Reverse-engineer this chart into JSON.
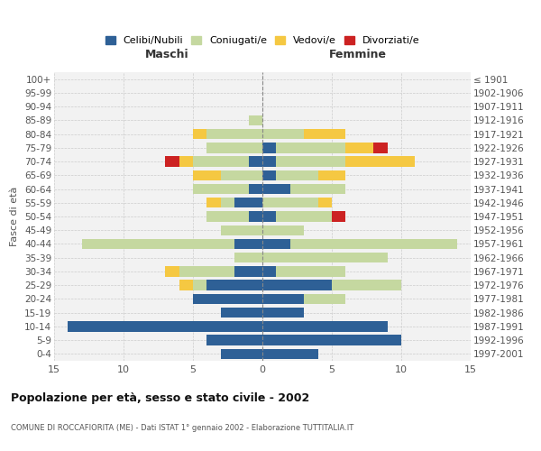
{
  "age_groups_bottom_to_top": [
    "0-4",
    "5-9",
    "10-14",
    "15-19",
    "20-24",
    "25-29",
    "30-34",
    "35-39",
    "40-44",
    "45-49",
    "50-54",
    "55-59",
    "60-64",
    "65-69",
    "70-74",
    "75-79",
    "80-84",
    "85-89",
    "90-94",
    "95-99",
    "100+"
  ],
  "birth_years_bottom_to_top": [
    "1997-2001",
    "1992-1996",
    "1987-1991",
    "1982-1986",
    "1977-1981",
    "1972-1976",
    "1967-1971",
    "1962-1966",
    "1957-1961",
    "1952-1956",
    "1947-1951",
    "1942-1946",
    "1937-1941",
    "1932-1936",
    "1927-1931",
    "1922-1926",
    "1917-1921",
    "1912-1916",
    "1907-1911",
    "1902-1906",
    "≤ 1901"
  ],
  "maschi": {
    "celibi": [
      3,
      4,
      14,
      3,
      5,
      4,
      2,
      0,
      2,
      0,
      1,
      2,
      1,
      0,
      1,
      0,
      0,
      0,
      0,
      0,
      0
    ],
    "coniugati": [
      0,
      0,
      0,
      0,
      0,
      1,
      4,
      2,
      11,
      3,
      3,
      1,
      4,
      3,
      4,
      4,
      4,
      1,
      0,
      0,
      0
    ],
    "vedovi": [
      0,
      0,
      0,
      0,
      0,
      1,
      1,
      0,
      0,
      0,
      0,
      1,
      0,
      2,
      1,
      0,
      1,
      0,
      0,
      0,
      0
    ],
    "divorziati": [
      0,
      0,
      0,
      0,
      0,
      0,
      0,
      0,
      0,
      0,
      0,
      0,
      0,
      0,
      1,
      0,
      0,
      0,
      0,
      0,
      0
    ]
  },
  "femmine": {
    "nubili": [
      4,
      10,
      9,
      3,
      3,
      5,
      1,
      0,
      2,
      0,
      1,
      0,
      2,
      1,
      1,
      1,
      0,
      0,
      0,
      0,
      0
    ],
    "coniugate": [
      0,
      0,
      0,
      0,
      3,
      5,
      5,
      9,
      12,
      3,
      4,
      4,
      4,
      3,
      5,
      5,
      3,
      0,
      0,
      0,
      0
    ],
    "vedove": [
      0,
      0,
      0,
      0,
      0,
      0,
      0,
      0,
      0,
      0,
      0,
      1,
      0,
      2,
      5,
      2,
      3,
      0,
      0,
      0,
      0
    ],
    "divorziate": [
      0,
      0,
      0,
      0,
      0,
      0,
      0,
      0,
      0,
      0,
      1,
      0,
      0,
      0,
      0,
      1,
      0,
      0,
      0,
      0,
      0
    ]
  },
  "color_celibi": "#2e6096",
  "color_coniugati": "#c5d8a0",
  "color_vedovi": "#f5c842",
  "color_divorziati": "#cc2222",
  "title": "Popolazione per età, sesso e stato civile - 2002",
  "subtitle": "COMUNE DI ROCCAFIORITA (ME) - Dati ISTAT 1° gennaio 2002 - Elaborazione TUTTITALIA.IT",
  "xlabel_maschi": "Maschi",
  "xlabel_femmine": "Femmine",
  "ylabel": "Fasce di età",
  "xlim": 15,
  "legend_labels": [
    "Celibi/Nubili",
    "Coniugati/e",
    "Vedovi/e",
    "Divorziati/e"
  ]
}
